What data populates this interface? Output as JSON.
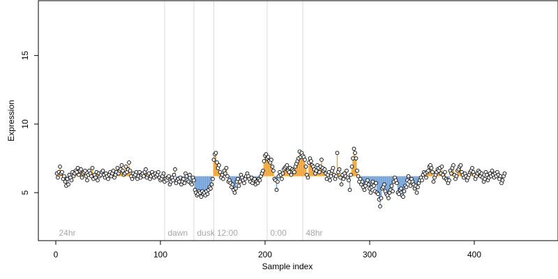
{
  "chart_data": {
    "type": "scatter",
    "title": "",
    "xlabel": "Sample index",
    "ylabel": "Expression",
    "xlim": [
      0,
      480
    ],
    "ylim": [
      1.5,
      19
    ],
    "x_ticks": [
      0,
      100,
      200,
      300,
      400
    ],
    "y_ticks": [
      5,
      10,
      15
    ],
    "grid": false,
    "legend": "none",
    "colors": {
      "high_stick": "#f0a030",
      "low_stick": "#6f9fd8",
      "point_fill": "#ffffff",
      "point_stroke": "#000000",
      "divider": "#d9d9d9",
      "segment_label": "#a6a6a6"
    },
    "segments": [
      {
        "label": "24hr",
        "start": 1
      },
      {
        "label": "dawn",
        "start": 105
      },
      {
        "label": "dusk",
        "start": 133
      },
      {
        "label": "12:00",
        "start": 152
      },
      {
        "label": "0:00",
        "start": 203
      },
      {
        "label": "48hr",
        "start": 237
      }
    ],
    "series": [
      {
        "x_start": 1,
        "values": [
          6.4,
          6.1,
          6.5,
          6.9,
          6.4,
          6.5,
          6.0,
          6.2,
          5.8,
          5.5,
          6.0,
          5.6,
          6.3,
          6.1,
          5.9,
          6.5,
          6.2,
          6.4,
          6.6,
          6.5,
          6.8,
          6.3,
          6.6,
          6.7,
          6.1,
          6.4,
          6.5,
          6.6,
          6.2,
          5.9,
          6.3,
          6.6,
          6.4,
          6.2,
          6.8,
          6.0,
          6.3,
          6.1,
          6.5,
          5.9,
          6.4,
          6.2,
          6.3,
          6.5,
          6.6,
          6.3,
          6.1,
          6.4,
          6.2,
          6.0,
          6.3,
          6.5,
          6.2,
          6.4,
          6.6,
          6.1,
          6.3,
          6.5,
          6.8,
          6.4,
          6.6,
          6.7,
          7.0,
          6.6,
          6.3,
          6.4,
          6.9,
          6.5,
          6.7,
          7.2,
          6.6,
          6.2,
          6.0,
          6.4,
          6.2,
          6.3,
          6.5,
          6.0,
          6.2,
          6.5,
          6.1,
          6.3,
          6.4,
          6.2,
          6.5,
          6.7,
          6.1,
          6.3,
          6.4,
          6.0,
          6.2,
          6.5,
          6.3,
          6.1,
          6.4,
          6.2,
          6.3,
          6.5,
          6.1,
          5.9,
          6.0,
          6.2,
          6.4,
          5.8,
          6.0,
          5.9,
          6.1,
          6.2,
          5.6,
          5.8,
          6.1,
          5.9,
          6.3,
          6.7,
          5.7,
          5.9,
          6.0,
          5.8,
          6.1,
          5.6,
          5.8,
          6.0,
          5.7,
          6.4,
          6.2,
          5.9,
          5.8,
          6.3,
          5.7,
          5.6,
          6.1,
          5.9,
          5.2,
          5.0,
          4.8,
          4.9,
          5.1,
          5.0,
          4.7,
          5.1,
          4.9,
          5.0,
          4.8,
          5.1,
          4.9,
          5.2,
          5.4,
          5.3,
          5.6,
          6.0,
          7.4,
          7.8,
          7.9,
          7.2,
          6.8,
          7.0,
          6.5,
          6.1,
          6.3,
          6.0,
          6.6,
          6.4,
          6.8,
          6.2,
          5.8,
          5.9,
          5.7,
          5.4,
          5.6,
          5.2,
          5.0,
          5.3,
          5.8,
          6.0,
          5.5,
          5.8,
          6.3,
          6.1,
          5.9,
          5.7,
          6.0,
          6.2,
          6.4,
          6.2,
          6.0,
          5.8,
          6.1,
          5.7,
          5.9,
          6.0,
          5.6,
          5.8,
          5.7,
          6.0,
          5.9,
          6.2,
          6.4,
          6.6,
          7.3,
          7.7,
          7.8,
          7.5,
          7.6,
          7.3,
          7.2,
          7.4,
          6.9,
          6.6,
          6.0,
          5.9,
          5.2,
          5.8,
          6.2,
          6.5,
          6.3,
          6.0,
          6.4,
          6.7,
          6.8,
          6.9,
          7.0,
          6.6,
          6.5,
          6.8,
          6.3,
          6.7,
          6.6,
          6.5,
          6.9,
          7.1,
          7.3,
          7.5,
          8.0,
          7.6,
          7.9,
          7.7,
          7.6,
          7.4,
          6.9,
          6.3,
          6.1,
          7.2,
          7.5,
          7.3,
          7.0,
          6.9,
          6.7,
          6.4,
          6.6,
          7.0,
          6.8,
          6.5,
          6.9,
          7.4,
          6.8,
          6.6,
          6.7,
          6.4,
          6.0,
          6.3,
          6.5,
          5.9,
          6.2,
          6.6,
          6.8,
          6.3,
          6.0,
          6.2,
          7.9,
          6.5,
          6.7,
          6.1,
          5.6,
          6.3,
          6.0,
          6.4,
          6.2,
          6.6,
          6.1,
          5.9,
          5.2,
          6.3,
          6.9,
          7.5,
          8.2,
          7.9,
          7.5,
          6.6,
          6.2,
          5.8,
          6.0,
          5.6,
          5.8,
          5.4,
          5.2,
          5.5,
          5.7,
          5.9,
          5.6,
          5.3,
          5.0,
          5.4,
          5.8,
          5.5,
          5.1,
          5.7,
          5.0,
          4.9,
          4.5,
          4.0,
          4.6,
          5.3,
          5.4,
          5.6,
          5.1,
          4.9,
          4.8,
          4.6,
          5.0,
          5.2,
          5.5,
          5.1,
          5.8,
          6.1,
          5.9,
          5.7,
          5.0,
          4.9,
          5.2,
          5.3,
          4.8,
          4.7,
          5.1,
          5.5,
          5.4,
          5.9,
          6.2,
          5.8,
          5.5,
          6.0,
          5.8,
          5.6,
          5.3,
          5.5,
          5.0,
          5.4,
          5.7,
          5.9,
          6.1,
          5.9,
          6.3,
          6.5,
          6.4,
          6.1,
          6.5,
          6.6,
          6.9,
          7.0,
          6.8,
          6.5,
          5.8,
          6.1,
          6.3,
          6.5,
          6.7,
          6.6,
          6.8,
          6.4,
          6.9,
          6.3,
          6.1,
          6.5,
          6.0,
          5.9,
          5.7,
          5.9,
          6.6,
          6.4,
          6.8,
          7.0,
          6.3,
          6.0,
          6.2,
          6.6,
          6.7,
          6.9,
          7.0,
          6.5,
          6.3,
          6.1,
          6.4,
          6.2,
          5.9,
          6.1,
          6.3,
          6.5,
          6.6,
          6.8,
          6.5,
          6.3,
          6.0,
          6.2,
          6.4,
          6.6,
          6.5,
          6.2,
          6.4,
          6.1,
          5.8,
          6.0,
          6.5,
          6.3,
          5.9,
          6.1,
          6.4,
          6.2,
          6.6,
          6.3,
          6.1,
          6.4,
          6.2,
          6.5,
          6.3,
          6.0,
          6.2,
          5.7,
          5.9,
          6.2,
          6.4
        ]
      }
    ]
  }
}
